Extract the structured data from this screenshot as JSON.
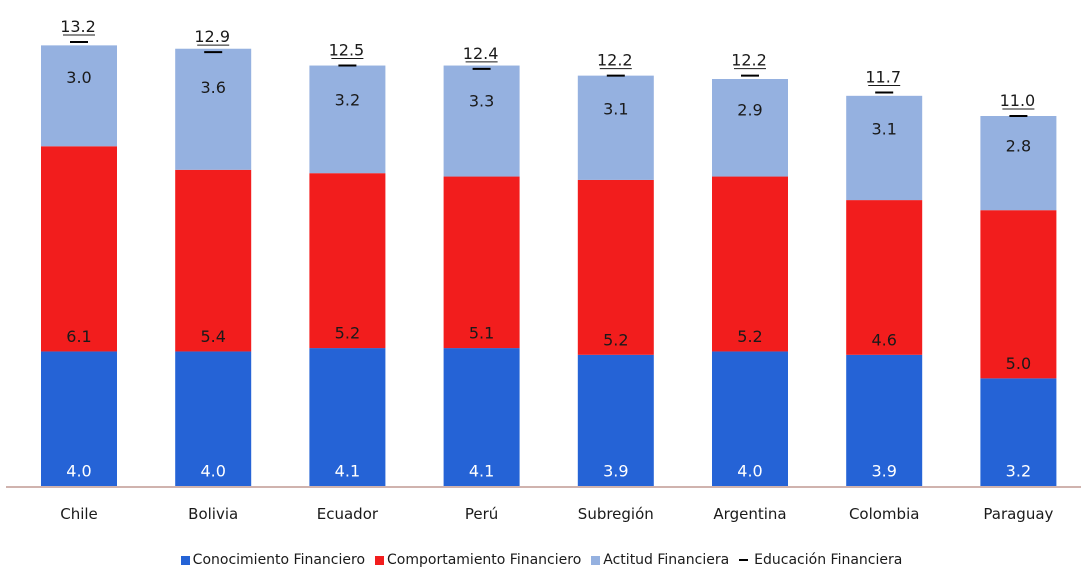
{
  "chart_data": {
    "type": "bar",
    "stacked": true,
    "categories": [
      "Chile",
      "Bolivia",
      "Ecuador",
      "Perú",
      "Subregión",
      "Argentina",
      "Colombia",
      "Paraguay"
    ],
    "series": [
      {
        "name": "Conocimiento Financiero",
        "color": "#2563d6",
        "values": [
          4.0,
          4.0,
          4.1,
          4.1,
          3.9,
          4.0,
          3.9,
          3.2
        ]
      },
      {
        "name": "Comportamiento Financiero",
        "color": "#f21d1d",
        "values": [
          6.1,
          5.4,
          5.2,
          5.1,
          5.2,
          5.2,
          4.6,
          5.0
        ]
      },
      {
        "name": "Actitud Financiera",
        "color": "#95b1e0",
        "values": [
          3.0,
          3.6,
          3.2,
          3.3,
          3.1,
          2.9,
          3.1,
          2.8
        ]
      }
    ],
    "total_series": {
      "name": "Educación Financiera",
      "color": "#000000",
      "values": [
        13.2,
        12.9,
        12.5,
        12.4,
        12.2,
        12.2,
        11.7,
        11.0
      ]
    },
    "value_labels": {
      "segments": [
        [
          "4.0",
          "6.1",
          "3.0"
        ],
        [
          "4.0",
          "5.4",
          "3.6"
        ],
        [
          "4.1",
          "5.2",
          "3.2"
        ],
        [
          "4.1",
          "5.1",
          "3.3"
        ],
        [
          "3.9",
          "5.2",
          "3.1"
        ],
        [
          "4.0",
          "5.2",
          "2.9"
        ],
        [
          "3.9",
          "4.6",
          "3.1"
        ],
        [
          "3.2",
          "5.0",
          "2.8"
        ]
      ],
      "totals": [
        "13.2",
        "12.9",
        "12.5",
        "12.4",
        "12.2",
        "12.2",
        "11.7",
        "11.0"
      ]
    },
    "ylim": [
      0,
      13.2
    ],
    "y_axis_visible": false,
    "grid": false,
    "legend_position": "bottom",
    "axis_color": "#c09a94"
  }
}
